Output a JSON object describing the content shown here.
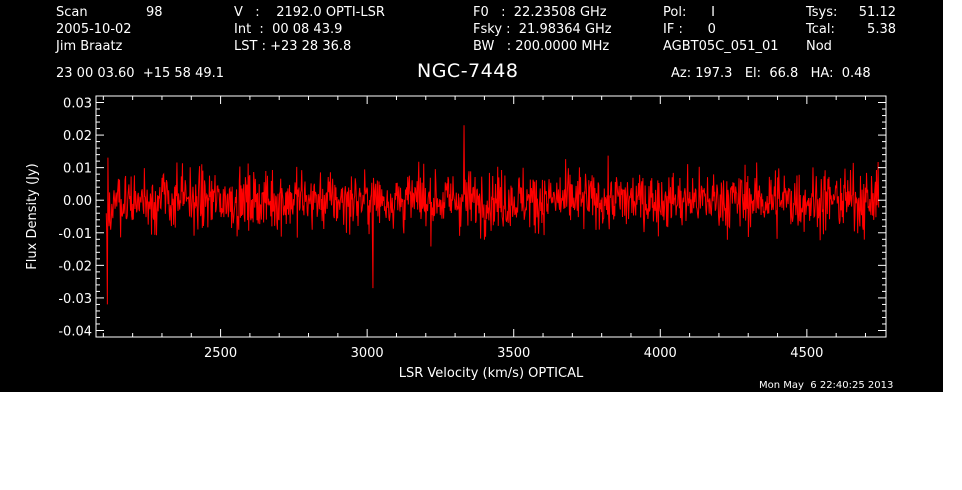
{
  "header": {
    "scan_label": "Scan",
    "scan_value": "98",
    "date": "2005-10-02",
    "observer": "Jim Braatz",
    "v_line": "V   :    2192.0 OPTI-LSR",
    "int_line": "Int  :  00 08 43.9",
    "lst_line": "LST : +23 28 36.8",
    "f0_line": "F0   :  22.23508 GHz",
    "fsky_line": "Fsky :  21.98364 GHz",
    "bw_line": "BW   : 200.0000 MHz",
    "pol_line": "Pol:      I",
    "if_line": "IF :      0",
    "project": "AGBT05C_051_01",
    "tsys_label": "Tsys:",
    "tsys_value": "51.12",
    "tcal_label": "Tcal:",
    "tcal_value": "5.38",
    "mode": "Nod",
    "coords": "23 00 03.60  +15 58 49.1",
    "source": "NGC-7448",
    "az_el_ha": "Az: 197.3   El:  66.8   HA:  0.48",
    "timestamp": "Mon May  6 22:40:25 2013"
  },
  "colors": {
    "background": "#000000",
    "axes": "#ffffff",
    "trace": "#ff0000",
    "margin": "#ffffff"
  },
  "chart_data": {
    "type": "line",
    "xlabel": "LSR Velocity (km/s) OPTICAL",
    "ylabel": "Flux Density (Jy)",
    "xlim": [
      2075,
      4770
    ],
    "ylim": [
      -0.042,
      0.032
    ],
    "xticks": [
      2500,
      3000,
      3500,
      4000,
      4500
    ],
    "xtick_labels": [
      "2500",
      "3000",
      "3500",
      "4000",
      "4500"
    ],
    "yticks": [
      -0.04,
      -0.03,
      -0.02,
      -0.01,
      0.0,
      0.01,
      0.02,
      0.03
    ],
    "ytick_labels": [
      "-0.04",
      "-0.03",
      "-0.02",
      "-0.01",
      "0.00",
      "0.01",
      "0.02",
      "0.03"
    ],
    "grid": false,
    "series": [
      {
        "x_start": 2110,
        "x_end": 4745,
        "points": 1400,
        "mean": 0.0,
        "rms": 0.0065,
        "min_point": [
          3020,
          -0.027
        ],
        "max_point": [
          3330,
          0.023
        ],
        "edge_min_point": [
          2113,
          -0.032
        ]
      }
    ]
  }
}
